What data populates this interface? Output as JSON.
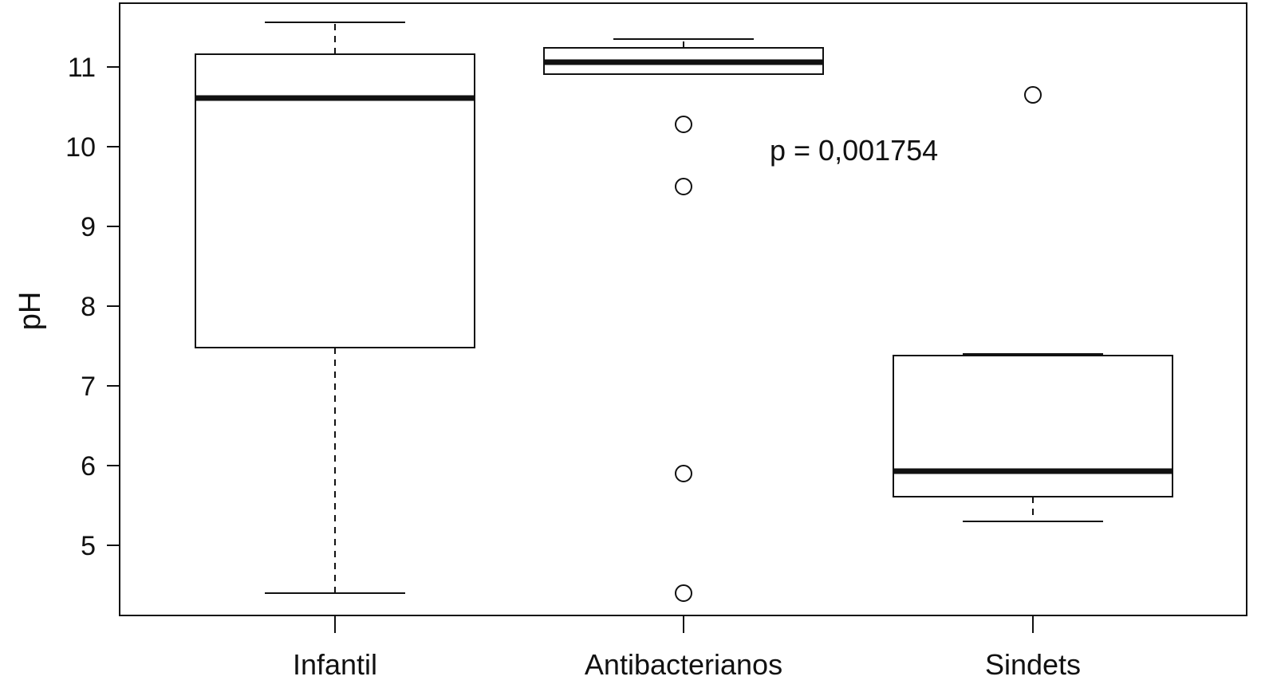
{
  "chart_data": {
    "type": "boxplot",
    "title": "",
    "xlabel": "",
    "ylabel": "pH",
    "ylim": [
      4.1,
      11.7
    ],
    "yticks": [
      5,
      6,
      7,
      8,
      9,
      10,
      11
    ],
    "grid": false,
    "categories": [
      "Infantil",
      "Antibacterianos",
      "Sindets"
    ],
    "boxes": [
      {
        "category": "Infantil",
        "whisker_low": 4.4,
        "q1": 7.48,
        "median": 10.61,
        "q3": 11.16,
        "whisker_high": 11.56,
        "outliers": []
      },
      {
        "category": "Antibacterianos",
        "whisker_low": 10.91,
        "q1": 10.91,
        "median": 11.06,
        "q3": 11.24,
        "whisker_high": 11.35,
        "outliers": [
          10.28,
          9.5,
          5.9,
          4.4
        ]
      },
      {
        "category": "Sindets",
        "whisker_low": 5.3,
        "q1": 5.61,
        "median": 5.93,
        "q3": 7.38,
        "whisker_high": 7.4,
        "outliers": [
          10.65
        ]
      }
    ],
    "annotation": {
      "text": "p = 0,001754",
      "x_category": "Antibacterianos",
      "y": 9.95
    },
    "colors": {
      "line": "#111111",
      "box_fill": "#ffffff"
    }
  }
}
